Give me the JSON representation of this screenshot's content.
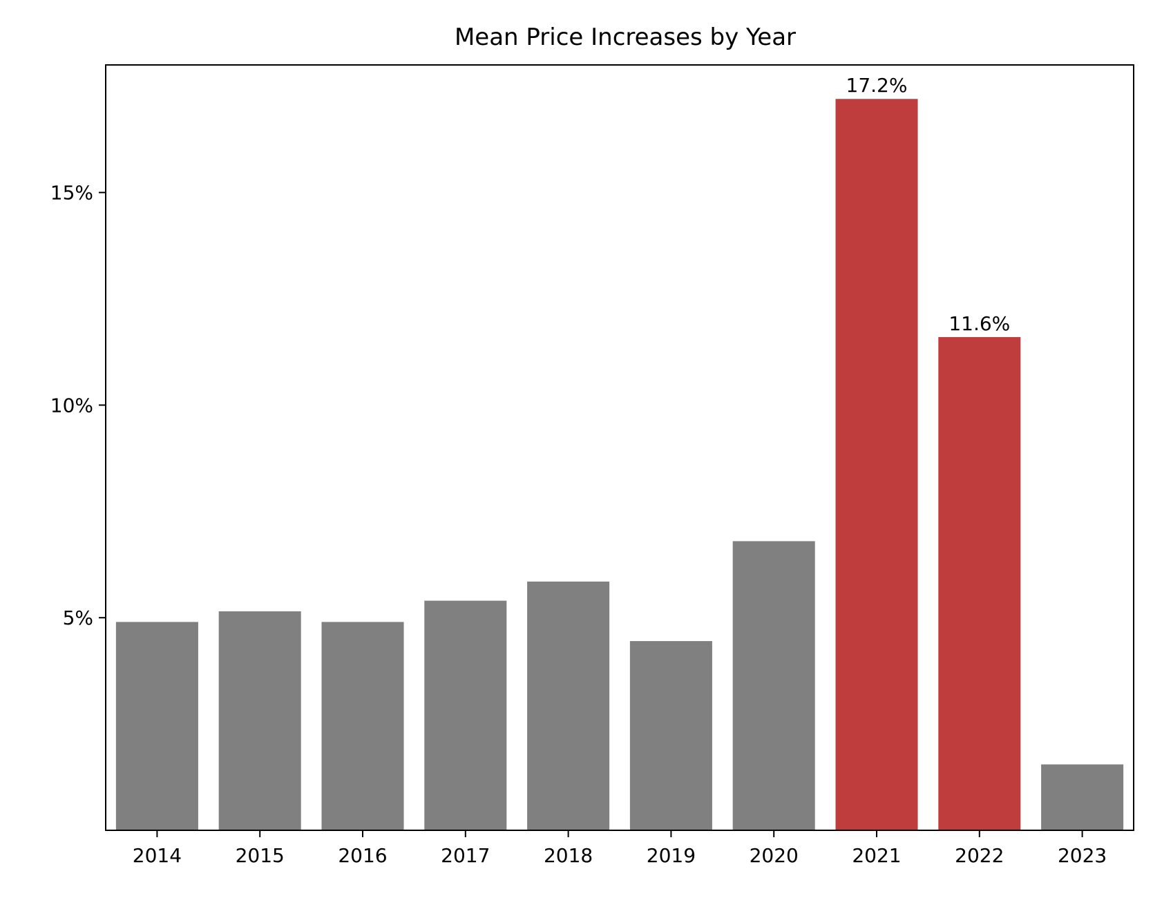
{
  "chart_data": {
    "type": "bar",
    "title": "Mean Price Increases by Year",
    "xlabel": "",
    "ylabel": "",
    "categories": [
      "2014",
      "2015",
      "2016",
      "2017",
      "2018",
      "2019",
      "2020",
      "2021",
      "2022",
      "2023"
    ],
    "values": [
      4.9,
      5.15,
      4.9,
      5.4,
      5.85,
      4.45,
      6.8,
      17.2,
      11.6,
      1.55
    ],
    "ylim": [
      0,
      18.0
    ],
    "yticks": [
      5,
      10,
      15
    ],
    "ytick_labels": [
      "5%",
      "10%",
      "15%"
    ],
    "data_labels": [
      {
        "category": "2021",
        "text": "17.2%"
      },
      {
        "category": "2022",
        "text": "11.6%"
      }
    ],
    "highlight_categories": [
      "2021",
      "2022"
    ],
    "colors": {
      "default": "#808080",
      "highlight": "#bf3d3d"
    },
    "grid": false,
    "legend": "none"
  }
}
